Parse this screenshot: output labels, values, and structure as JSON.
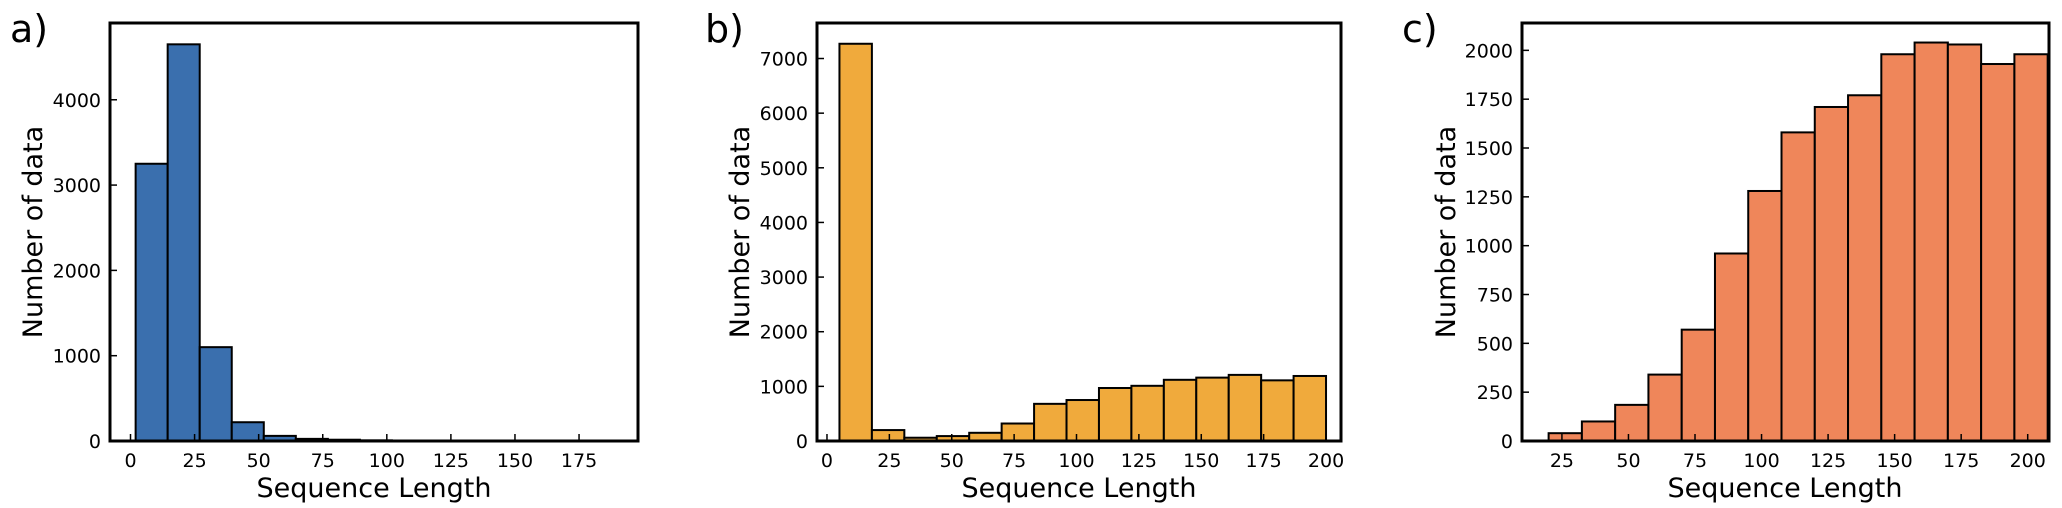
{
  "chart_data": [
    {
      "type": "bar",
      "panel_label": "a)",
      "color": "#3a6fae",
      "xlabel": "Sequence Length",
      "ylabel": "Number of data",
      "xlim": [
        -8,
        198
      ],
      "ylim": [
        0,
        4900
      ],
      "xticks": [
        0,
        25,
        50,
        75,
        100,
        125,
        150,
        175
      ],
      "yticks": [
        0,
        1000,
        2000,
        3000,
        4000
      ],
      "bin_edges": [
        2,
        14.5,
        27,
        39.5,
        52,
        64.5,
        77,
        89.5,
        102,
        114.5,
        127,
        139.5,
        152,
        164.5,
        177,
        189.5
      ],
      "values": [
        3250,
        4650,
        1100,
        220,
        60,
        25,
        15,
        8,
        5,
        3,
        2,
        2,
        1,
        1,
        1
      ]
    },
    {
      "type": "bar",
      "panel_label": "b)",
      "color": "#f0aa3c",
      "xlabel": "Sequence Length",
      "ylabel": "Number of data",
      "xlim": [
        -4,
        206
      ],
      "ylim": [
        0,
        7650
      ],
      "xticks": [
        0,
        25,
        50,
        75,
        100,
        125,
        150,
        175,
        200
      ],
      "yticks": [
        0,
        1000,
        2000,
        3000,
        4000,
        5000,
        6000,
        7000
      ],
      "bin_edges": [
        5,
        18,
        31,
        44,
        57,
        70,
        83,
        96,
        109,
        122,
        135,
        148,
        161,
        174,
        187,
        200
      ],
      "values": [
        7270,
        200,
        60,
        90,
        150,
        320,
        680,
        750,
        970,
        1010,
        1120,
        1160,
        1210,
        1110,
        1190
      ]
    },
    {
      "type": "bar",
      "panel_label": "c)",
      "color": "#ef865a",
      "xlabel": "Sequence Length",
      "ylabel": "Number of data",
      "xlim": [
        10,
        208
      ],
      "ylim": [
        0,
        2140
      ],
      "xticks": [
        25,
        50,
        75,
        100,
        125,
        150,
        175,
        200
      ],
      "yticks": [
        0,
        250,
        500,
        750,
        1000,
        1250,
        1500,
        1750,
        2000
      ],
      "bin_edges": [
        20,
        32.5,
        45,
        57.5,
        70,
        82.5,
        95,
        107.5,
        120,
        132.5,
        145,
        157.5,
        170,
        182.5,
        195,
        207.5
      ],
      "values": [
        40,
        100,
        185,
        340,
        570,
        960,
        1280,
        1580,
        1710,
        1770,
        1980,
        2040,
        2030,
        1930,
        1980
      ]
    }
  ]
}
